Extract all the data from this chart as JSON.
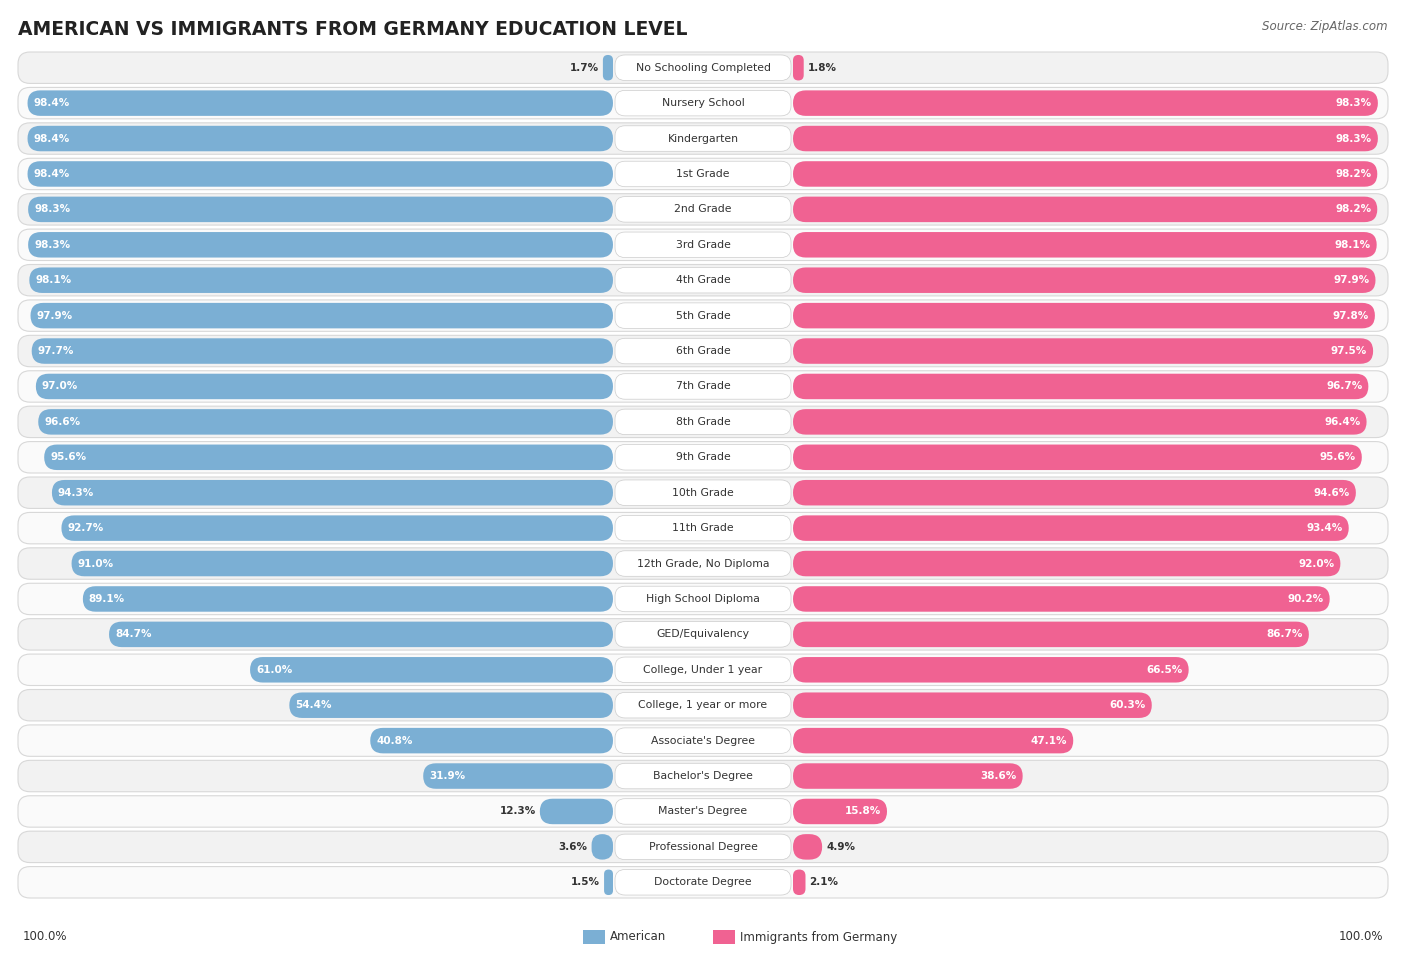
{
  "title": "AMERICAN VS IMMIGRANTS FROM GERMANY EDUCATION LEVEL",
  "source": "Source: ZipAtlas.com",
  "categories": [
    "No Schooling Completed",
    "Nursery School",
    "Kindergarten",
    "1st Grade",
    "2nd Grade",
    "3rd Grade",
    "4th Grade",
    "5th Grade",
    "6th Grade",
    "7th Grade",
    "8th Grade",
    "9th Grade",
    "10th Grade",
    "11th Grade",
    "12th Grade, No Diploma",
    "High School Diploma",
    "GED/Equivalency",
    "College, Under 1 year",
    "College, 1 year or more",
    "Associate's Degree",
    "Bachelor's Degree",
    "Master's Degree",
    "Professional Degree",
    "Doctorate Degree"
  ],
  "american": [
    1.7,
    98.4,
    98.4,
    98.4,
    98.3,
    98.3,
    98.1,
    97.9,
    97.7,
    97.0,
    96.6,
    95.6,
    94.3,
    92.7,
    91.0,
    89.1,
    84.7,
    61.0,
    54.4,
    40.8,
    31.9,
    12.3,
    3.6,
    1.5
  ],
  "germany": [
    1.8,
    98.3,
    98.3,
    98.2,
    98.2,
    98.1,
    97.9,
    97.8,
    97.5,
    96.7,
    96.4,
    95.6,
    94.6,
    93.4,
    92.0,
    90.2,
    86.7,
    66.5,
    60.3,
    47.1,
    38.6,
    15.8,
    4.9,
    2.1
  ],
  "american_color": "#7bafd4",
  "germany_color": "#f06292",
  "bar_bg_color": "#efefef",
  "legend_american": "American",
  "legend_germany": "Immigrants from Germany",
  "max_value": 100.0,
  "white_text_threshold": 15.0
}
